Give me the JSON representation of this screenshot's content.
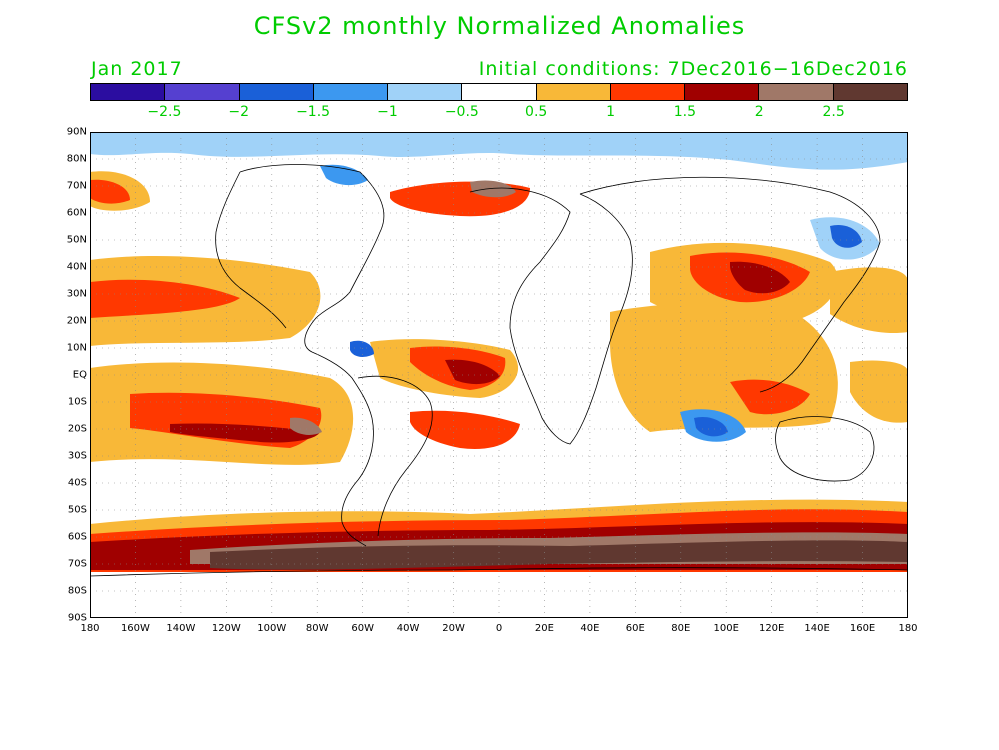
{
  "title": "CFSv2 monthly Normalized Anomalies",
  "month": "Jan 2017",
  "initial_conditions": "Initial conditions: 7Dec2016−16Dec2016",
  "text_color": "#00cc00",
  "colorbar": {
    "colors": [
      "#2b0da0",
      "#5540d0",
      "#1a60d8",
      "#3c98f0",
      "#a0d2f8",
      "#ffffff",
      "#f8b838",
      "#ff3800",
      "#a00000",
      "#a07868",
      "#603830"
    ],
    "labels": [
      "−2.5",
      "−2",
      "−1.5",
      "−1",
      "−0.5",
      "0.5",
      "1",
      "1.5",
      "2",
      "2.5"
    ]
  },
  "lat_labels": [
    "90N",
    "80N",
    "70N",
    "60N",
    "50N",
    "40N",
    "30N",
    "20N",
    "10N",
    "EQ",
    "10S",
    "20S",
    "30S",
    "40S",
    "50S",
    "60S",
    "70S",
    "80S",
    "90S"
  ],
  "lon_labels": [
    "180",
    "160W",
    "140W",
    "120W",
    "100W",
    "80W",
    "60W",
    "40W",
    "20W",
    "0",
    "20E",
    "40E",
    "60E",
    "80E",
    "100E",
    "120E",
    "140E",
    "160E",
    "180"
  ]
}
